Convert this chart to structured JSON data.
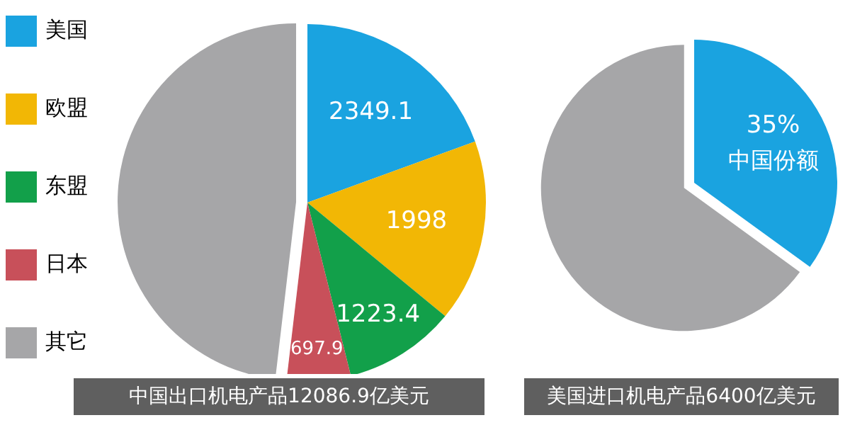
{
  "chart_data": [
    {
      "type": "pie",
      "title": "中国出口机电产品12086.9亿美元",
      "categories": [
        "美国",
        "欧盟",
        "东盟",
        "日本",
        "其它"
      ],
      "values": [
        2349.1,
        1998,
        1223.4,
        697.9,
        5818.5
      ],
      "value_labels": [
        "2349.1",
        "1998",
        "1223.4",
        "697.9",
        null
      ],
      "colors": [
        "#1aa3e0",
        "#f2b705",
        "#12a04a",
        "#c8505a",
        "#a6a6a8"
      ],
      "legend": "left"
    },
    {
      "type": "pie",
      "title": "美国进口机电产品6400亿美元",
      "categories": [
        "中国份额",
        null
      ],
      "values": [
        35,
        65
      ],
      "value_labels": [
        "35%",
        null
      ],
      "colors": [
        "#1aa3e0",
        "#a6a6a8"
      ]
    }
  ]
}
